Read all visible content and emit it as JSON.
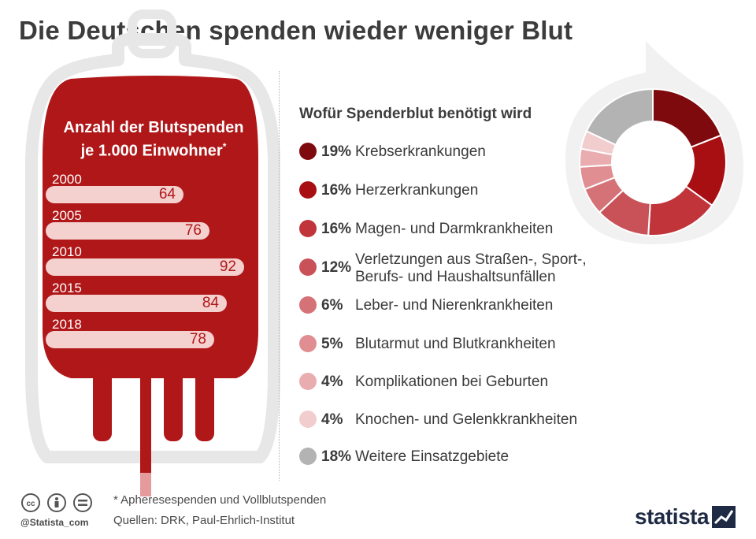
{
  "title": "Die Deutschen spenden wieder weniger Blut",
  "bag": {
    "title_line1": "Anzahl der Blutspenden",
    "title_line2": "je 1.000 Einwohner",
    "title_mark": "*"
  },
  "legend": {
    "title": "Wofür Spenderblut benötigt wird"
  },
  "chart_data": [
    {
      "type": "bar",
      "orientation": "horizontal",
      "title": "Anzahl der Blutspenden je 1.000 Einwohner*",
      "categories": [
        "2000",
        "2005",
        "2010",
        "2015",
        "2018"
      ],
      "values": [
        64,
        76,
        92,
        84,
        78
      ],
      "value_labels": [
        "64",
        "76",
        "92",
        "84",
        "78"
      ],
      "bar_color": "#f4d0cf",
      "label_color": "#b01718"
    },
    {
      "type": "pie",
      "donut": true,
      "title": "Wofür Spenderblut benötigt wird",
      "slices": [
        {
          "pct_label": "19%",
          "value": 19,
          "label": "Krebserkrankungen",
          "color": "#7e0a0e"
        },
        {
          "pct_label": "16%",
          "value": 16,
          "label": "Herzerkrankungen",
          "color": "#a80f12"
        },
        {
          "pct_label": "16%",
          "value": 16,
          "label": "Magen- und Darmkrankheiten",
          "color": "#c0343a"
        },
        {
          "pct_label": "12%",
          "value": 12,
          "label_line1": "Verletzungen aus Straßen-, Sport-,",
          "label_line2": "Berufs- und Haushaltsunfällen",
          "color": "#c95259"
        },
        {
          "pct_label": "6%",
          "value": 6,
          "label": "Leber- und Nierenkrankheiten",
          "color": "#d57277"
        },
        {
          "pct_label": "5%",
          "value": 5,
          "label": "Blutarmut und Blutkrankheiten",
          "color": "#e08e92"
        },
        {
          "pct_label": "4%",
          "value": 4,
          "label": "Komplikationen bei Geburten",
          "color": "#e9adb0"
        },
        {
          "pct_label": "4%",
          "value": 4,
          "label": "Knochen- und Gelenkkrankheiten",
          "color": "#f2cdce"
        },
        {
          "pct_label": "18%",
          "value": 18,
          "label": "Weitere Einsatzgebiete",
          "color": "#b3b3b3"
        }
      ]
    }
  ],
  "footer": {
    "footnote": "* Apheresespenden und Vollblutspenden",
    "sources": "Quellen: DRK, Paul-Ehrlich-Institut",
    "handle": "@Statista_com",
    "brand": "statista"
  },
  "colors": {
    "blood": "#b01718",
    "bag_outline": "#e6e6e6",
    "text": "#3a3a3a"
  }
}
